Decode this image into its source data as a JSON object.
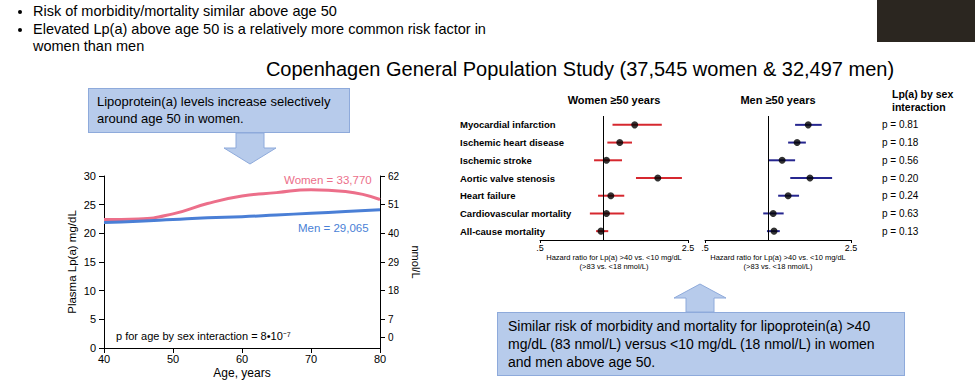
{
  "slide": {
    "bullets": [
      "Risk of morbidity/mortality similar above age 50",
      "Elevated Lp(a) above age 50 is a relatively more common risk factor in women than men"
    ],
    "title": "Copenhagen General Population Study (37,545 women & 32,497 men)",
    "callouts": [
      "Lipoprotein(a) levels increase selectively around age 50 in women.",
      "Similar risk of morbidity and mortality for lipoprotein(a) >40 mg/dL (83 nmol/L) versus <10 mg/dL (18 nmol/L) in women and men above age 50."
    ]
  },
  "chart_data": [
    {
      "type": "line",
      "x": [
        40,
        45,
        50,
        55,
        60,
        65,
        70,
        75,
        80
      ],
      "series": [
        {
          "name": "Women = 33,770",
          "color": "#ec6f8a",
          "values": [
            22.4,
            22.5,
            23.4,
            25.2,
            26.5,
            27.1,
            27.6,
            27.3,
            25.9
          ]
        },
        {
          "name": "Men = 29,065",
          "color": "#4a7fd6",
          "values": [
            21.9,
            22.1,
            22.4,
            22.7,
            22.9,
            23.2,
            23.5,
            23.8,
            24.1
          ]
        }
      ],
      "xlabel": "Age, years",
      "ylabel": "Plasma Lp(a) mg/dL",
      "y2label": "nmol/L",
      "xlim": [
        40,
        80
      ],
      "xticks": [
        40,
        50,
        60,
        70,
        80
      ],
      "ylim": [
        0,
        30
      ],
      "yticks": [
        0,
        5,
        10,
        15,
        20,
        25,
        30
      ],
      "y2lim": [
        -4,
        62
      ],
      "y2ticks": [
        0,
        7,
        18,
        29,
        40,
        51,
        62
      ],
      "annotations": [
        "p for age by sex interaction = 8•10⁻⁷"
      ],
      "grid": false
    },
    {
      "type": "forest",
      "title": "Women ≥50 years",
      "categories": [
        "Myocardial infarction",
        "Ischemic heart disease",
        "Ischemic stroke",
        "Aortic valve stenosis",
        "Heart failure",
        "Cardiovascular mortality",
        "All-cause mortality"
      ],
      "values": [
        1.4,
        1.19,
        1.03,
        1.8,
        1.08,
        1.03,
        0.97
      ],
      "ci_lower": [
        1.1,
        1.04,
        0.9,
        1.42,
        0.94,
        0.86,
        0.92
      ],
      "ci_upper": [
        1.88,
        1.36,
        1.22,
        2.34,
        1.25,
        1.25,
        1.05
      ],
      "color": "#d6282f",
      "reference": 1,
      "log": "x",
      "xlim": [
        0.5,
        2.5
      ],
      "xticks": [
        {
          "value": 0.5,
          "label": ".5"
        },
        2.5
      ],
      "xlabel": "Hazard ratio for Lp(a) >40 vs. <10 mg/dL (>83 vs. <18 nmol/L)"
    },
    {
      "type": "forest",
      "title": "Men ≥50 years",
      "categories": [
        "Myocardial infarction",
        "Ischemic heart disease",
        "Ischemic stroke",
        "Aortic valve stenosis",
        "Heart failure",
        "Cardiovascular mortality",
        "All-cause mortality"
      ],
      "values": [
        1.56,
        1.38,
        1.17,
        1.59,
        1.25,
        1.06,
        1.07
      ],
      "ci_lower": [
        1.35,
        1.25,
        1.01,
        1.28,
        1.12,
        0.95,
        0.99
      ],
      "ci_upper": [
        1.81,
        1.52,
        1.35,
        2.03,
        1.41,
        1.19,
        1.14
      ],
      "color": "#26268f",
      "reference": 1,
      "log": "x",
      "tick_labels": "x",
      "xlim": [
        0.5,
        2.5
      ],
      "xticks": [
        {
          "value": 0.5,
          "label": ".5"
        },
        2.5
      ],
      "xlabel": "Hazard ratio for Lp(a) >40 vs. <10 mg/dL (>83 vs. <18 nmol/L)",
      "interaction_title": "Lp(a) by sex interaction",
      "p_interaction": [
        "p = 0.81",
        "p = 0.18",
        "p = 0.56",
        "p = 0.20",
        "p = 0.24",
        "p = 0.63",
        "p = 0.13"
      ]
    }
  ]
}
